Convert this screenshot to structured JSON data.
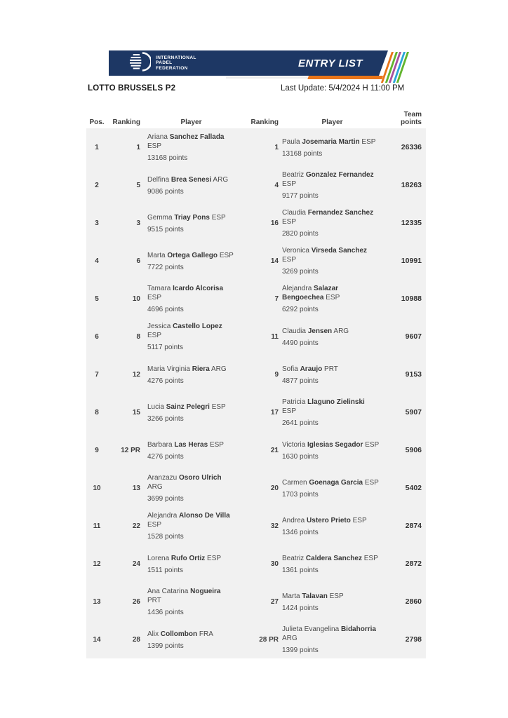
{
  "banner": {
    "logo_lines": [
      "INTERNATIONAL",
      "PADEL",
      "FEDERATION"
    ],
    "entry_list_label": "ENTRY LIST",
    "colors": {
      "navy": "#1d3764",
      "orange": "#e8751a",
      "stripes": [
        "#e8751a",
        "#62b52e",
        "#a8519f",
        "#2ba7d8",
        "#62b52e"
      ]
    }
  },
  "header": {
    "tournament_title": "LOTTO BRUSSELS P2",
    "last_update": "Last Update: 5/4/2024 H 11:00 PM"
  },
  "table": {
    "headers": {
      "pos": "Pos.",
      "ranking1": "Ranking",
      "player1": "Player",
      "ranking2": "Ranking",
      "player2": "Player",
      "team_line1": "Team",
      "team_line2": "points"
    },
    "rows": [
      {
        "pos": "1",
        "player1": {
          "ranking": "1",
          "first": "Ariana",
          "last": "Sanchez Fallada",
          "country": "ESP",
          "points": "13168 points"
        },
        "player2": {
          "ranking": "1",
          "first": "Paula",
          "last": "Josemaria Martin",
          "country": "ESP",
          "points": "13168 points"
        },
        "team_points": "26336"
      },
      {
        "pos": "2",
        "player1": {
          "ranking": "5",
          "first": "Delfina",
          "last": "Brea Senesi",
          "country": "ARG",
          "points": "9086 points"
        },
        "player2": {
          "ranking": "4",
          "first": "Beatriz",
          "last": "Gonzalez Fernandez",
          "country": "ESP",
          "points": "9177 points"
        },
        "team_points": "18263"
      },
      {
        "pos": "3",
        "player1": {
          "ranking": "3",
          "first": "Gemma",
          "last": "Triay Pons",
          "country": "ESP",
          "points": "9515 points"
        },
        "player2": {
          "ranking": "16",
          "first": "Claudia",
          "last": "Fernandez Sanchez",
          "country": "ESP",
          "points": "2820 points"
        },
        "team_points": "12335"
      },
      {
        "pos": "4",
        "player1": {
          "ranking": "6",
          "first": "Marta",
          "last": "Ortega Gallego",
          "country": "ESP",
          "points": "7722 points"
        },
        "player2": {
          "ranking": "14",
          "first": "Veronica",
          "last": "Virseda Sanchez",
          "country": "ESP",
          "points": "3269 points"
        },
        "team_points": "10991"
      },
      {
        "pos": "5",
        "player1": {
          "ranking": "10",
          "first": "Tamara",
          "last": "Icardo Alcorisa",
          "country": "ESP",
          "points": "4696 points"
        },
        "player2": {
          "ranking": "7",
          "first": "Alejandra",
          "last": "Salazar Bengoechea",
          "country": "ESP",
          "points": "6292 points"
        },
        "team_points": "10988"
      },
      {
        "pos": "6",
        "player1": {
          "ranking": "8",
          "first": "Jessica",
          "last": "Castello Lopez",
          "country": "ESP",
          "points": "5117 points"
        },
        "player2": {
          "ranking": "11",
          "first": "Claudia",
          "last": "Jensen",
          "country": "ARG",
          "points": "4490 points"
        },
        "team_points": "9607"
      },
      {
        "pos": "7",
        "player1": {
          "ranking": "12",
          "first": "Maria Virginia",
          "last": "Riera",
          "country": "ARG",
          "points": "4276 points"
        },
        "player2": {
          "ranking": "9",
          "first": "Sofia",
          "last": "Araujo",
          "country": "PRT",
          "points": "4877 points"
        },
        "team_points": "9153"
      },
      {
        "pos": "8",
        "player1": {
          "ranking": "15",
          "first": "Lucia",
          "last": "Sainz Pelegri",
          "country": "ESP",
          "points": "3266 points"
        },
        "player2": {
          "ranking": "17",
          "first": "Patricia",
          "last": "Llaguno Zielinski",
          "country": "ESP",
          "points": "2641 points"
        },
        "team_points": "5907"
      },
      {
        "pos": "9",
        "player1": {
          "ranking": "12 PR",
          "first": "Barbara",
          "last": "Las Heras",
          "country": "ESP",
          "points": "4276 points"
        },
        "player2": {
          "ranking": "21",
          "first": "Victoria",
          "last": "Iglesias Segador",
          "country": "ESP",
          "points": "1630 points"
        },
        "team_points": "5906"
      },
      {
        "pos": "10",
        "player1": {
          "ranking": "13",
          "first": "Aranzazu",
          "last": "Osoro Ulrich",
          "country": "ARG",
          "points": "3699 points"
        },
        "player2": {
          "ranking": "20",
          "first": "Carmen",
          "last": "Goenaga Garcia",
          "country": "ESP",
          "points": "1703 points"
        },
        "team_points": "5402"
      },
      {
        "pos": "11",
        "player1": {
          "ranking": "22",
          "first": "Alejandra",
          "last": "Alonso De Villa",
          "country": "ESP",
          "points": "1528 points"
        },
        "player2": {
          "ranking": "32",
          "first": "Andrea",
          "last": "Ustero Prieto",
          "country": "ESP",
          "points": "1346 points"
        },
        "team_points": "2874"
      },
      {
        "pos": "12",
        "player1": {
          "ranking": "24",
          "first": "Lorena",
          "last": "Rufo Ortiz",
          "country": "ESP",
          "points": "1511 points"
        },
        "player2": {
          "ranking": "30",
          "first": "Beatriz",
          "last": "Caldera Sanchez",
          "country": "ESP",
          "points": "1361 points"
        },
        "team_points": "2872"
      },
      {
        "pos": "13",
        "player1": {
          "ranking": "26",
          "first": "Ana Catarina",
          "last": "Nogueira",
          "country": "PRT",
          "points": "1436 points"
        },
        "player2": {
          "ranking": "27",
          "first": "Marta",
          "last": "Talavan",
          "country": "ESP",
          "points": "1424 points"
        },
        "team_points": "2860"
      },
      {
        "pos": "14",
        "player1": {
          "ranking": "28",
          "first": "Alix",
          "last": "Collombon",
          "country": "FRA",
          "points": "1399 points"
        },
        "player2": {
          "ranking": "28 PR",
          "first": "Julieta Evangelina",
          "last": "Bidahorria",
          "country": "ARG",
          "points": "1399 points"
        },
        "team_points": "2798"
      }
    ]
  }
}
